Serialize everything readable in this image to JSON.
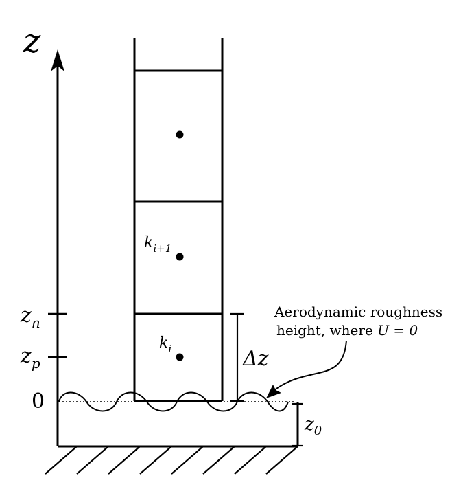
{
  "axis": {
    "label": "z",
    "ticks": [
      {
        "symbol": "z",
        "sub": "n"
      },
      {
        "symbol": "z",
        "sub": "p"
      },
      {
        "symbol": "0",
        "sub": ""
      }
    ]
  },
  "cells": {
    "labels": [
      {
        "symbol": "k",
        "sub": "i+1"
      },
      {
        "symbol": "k",
        "sub": "i"
      }
    ]
  },
  "delta": {
    "label": "Δz"
  },
  "roughness": {
    "symbol": "z",
    "sub": "0"
  },
  "annotation": {
    "line1": "Aerodynamic roughness",
    "line2_prefix": "height, where ",
    "line2_math": "U = 0"
  },
  "colors": {
    "ink": "#000000",
    "background": "#ffffff"
  }
}
